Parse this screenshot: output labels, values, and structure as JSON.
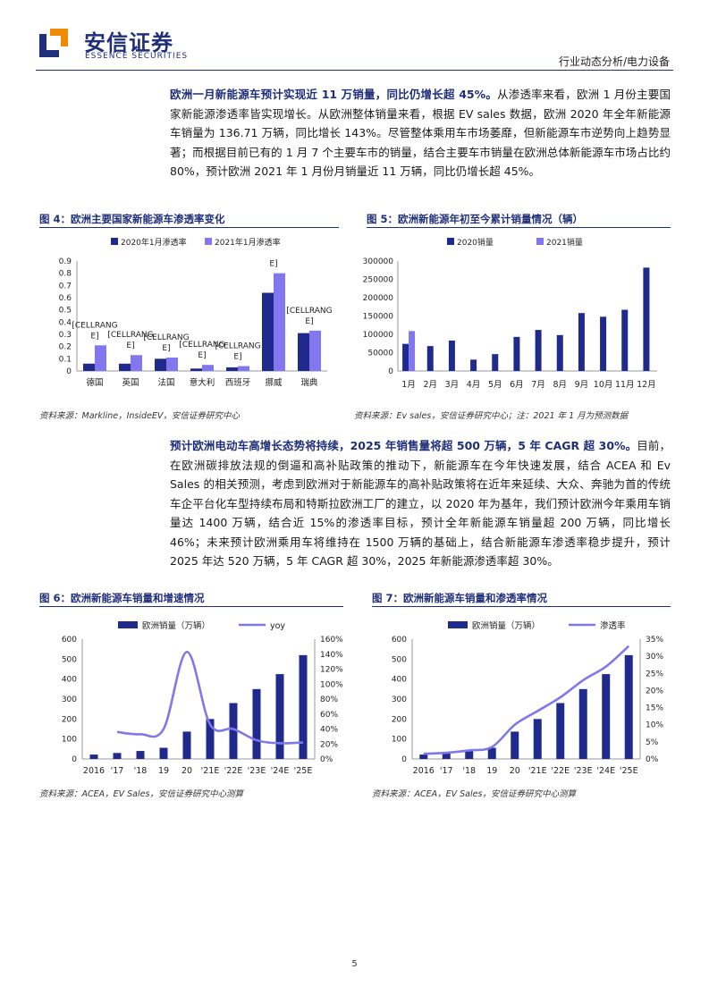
{
  "header": {
    "logo_cn": "安信证券",
    "logo_en": "ESSENCE SECURITIES",
    "category": "行业动态分析/电力设备"
  },
  "paragraph1": {
    "lead": "欧洲一月新能源车预计实现近 11 万销量，同比仍增长超 45%。",
    "body": "从渗透率来看，欧洲 1 月份主要国家新能源渗透率皆实现增长。从欧洲整体销量来看，根据 EV sales 数据，欧洲 2020 年全年新能源车销量为 136.71 万辆，同比增长 143%。尽管整体乘用车市场萎靡，但新能源车市逆势向上趋势显著；而根据目前已有的 1 月 7 个主要车市的销量，结合主要车市销量在欧洲总体新能源车市场占比约 80%，预计欧洲 2021 年 1 月份月销量近 11 万辆，同比仍增长超 45%。"
  },
  "paragraph2": {
    "lead": "预计欧洲电动车高增长态势将持续，2025 年销售量将超 500 万辆，5 年 CAGR 超 30%。",
    "body": "目前，在欧洲碳排放法规的倒逼和高补贴政策的推动下，新能源车在今年快速发展，结合 ACEA 和 Ev Sales 的相关预测，考虑到欧洲对于新能源车的高补贴政策将在近年来延续、大众、奔驰为首的传统车企平台化车型持续布局和特斯拉欧洲工厂的建立，以 2020 年为基年，我们预计欧洲今年乘用车销量达 1400 万辆，结合近 15%的渗透率目标，预计全年新能源车销量超 200 万辆，同比增长 46%；未来预计欧洲乘用车将维持在 1500 万辆的基础上，结合新能源车渗透率稳步提升，预计 2025 年达 520 万辆，5 年 CAGR 超 30%，2025 年新能源渗透率超 30%。"
  },
  "figures": {
    "fig4": {
      "title": "图 4：欧洲主要国家新能源车渗透率变化",
      "source": "资料来源：Markline，InsideEV，安信证券研究中心"
    },
    "fig5": {
      "title": "图 5：欧洲新能源年初至今累计销量情况（辆）",
      "source": "资料来源：Ev sales，安信证券研究中心；注：2021 年 1 月为预测数据"
    },
    "fig6": {
      "title": "图 6：欧洲新能源车销量和增速情况",
      "source": "资料来源：ACEA，EV Sales，安信证券研究中心测算"
    },
    "fig7": {
      "title": "图 7：欧洲新能源车销量和渗透率情况",
      "source": "资料来源：ACEA，EV Sales，安信证券研究中心测算"
    }
  },
  "colors": {
    "dark": "#1f2a8c",
    "light": "#8277ee",
    "line": "#7f78e8",
    "brand": "#1f2f7a"
  },
  "page_number": "5",
  "chart_data": [
    {
      "id": "fig4",
      "type": "bar",
      "categories": [
        "德国",
        "英国",
        "法国",
        "意大利",
        "西班牙",
        "挪威",
        "瑞典"
      ],
      "series": [
        {
          "name": "2020年1月渗透率",
          "values": [
            0.06,
            0.06,
            0.1,
            0.02,
            0.03,
            0.64,
            0.31
          ]
        },
        {
          "name": "2021年1月渗透率",
          "values": [
            0.21,
            0.13,
            0.11,
            0.05,
            0.04,
            0.8,
            0.33
          ]
        }
      ],
      "annotations": [
        {
          "category": "德国",
          "text": [
            "[CELLRANG",
            "E]"
          ]
        },
        {
          "category": "英国",
          "text": [
            "[CELLRANG",
            "E]"
          ]
        },
        {
          "category": "法国",
          "text": [
            "[CELLRANG",
            "E]"
          ]
        },
        {
          "category": "意大利",
          "text": [
            "[CELLRANG",
            "E]"
          ]
        },
        {
          "category": "西班牙",
          "text": [
            "[CELLRANG",
            "E]"
          ]
        },
        {
          "category": "挪威",
          "text": [
            "E]"
          ]
        },
        {
          "category": "瑞典",
          "text": [
            "[CELLRANG",
            "E]"
          ]
        }
      ],
      "yticks": [
        "0",
        "0.1",
        "0.2",
        "0.3",
        "0.4",
        "0.5",
        "0.6",
        "0.7",
        "0.8",
        "0.9"
      ],
      "ylim": [
        0,
        0.9
      ],
      "legend": "top"
    },
    {
      "id": "fig5",
      "type": "bar",
      "categories": [
        "1月",
        "2月",
        "3月",
        "4月",
        "5月",
        "6月",
        "7月",
        "8月",
        "9月",
        "10月",
        "11月",
        "12月"
      ],
      "series": [
        {
          "name": "2020销量",
          "values": [
            74000,
            68000,
            83000,
            31000,
            46000,
            93000,
            112000,
            98000,
            158000,
            148000,
            167000,
            282000
          ]
        },
        {
          "name": "2021销量",
          "values": [
            109000,
            null,
            null,
            null,
            null,
            null,
            null,
            null,
            null,
            null,
            null,
            null
          ]
        }
      ],
      "yticks": [
        "0",
        "50000",
        "100000",
        "150000",
        "200000",
        "250000",
        "300000"
      ],
      "ylim": [
        0,
        300000
      ],
      "legend": "top"
    },
    {
      "id": "fig6",
      "type": "bar",
      "categories": [
        "2016",
        "'17",
        "'18",
        "19",
        "20",
        "'21E",
        "'22E",
        "'23E",
        "'24E",
        "'25E"
      ],
      "series": [
        {
          "name": "欧洲销量（万辆）",
          "type": "bar",
          "axis": "left",
          "values": [
            22,
            30,
            40,
            56,
            137,
            200,
            280,
            350,
            425,
            520
          ]
        },
        {
          "name": "yoy",
          "type": "line",
          "axis": "right",
          "values": [
            null,
            0.36,
            0.33,
            0.4,
            1.43,
            0.46,
            0.4,
            0.25,
            0.21,
            0.22
          ]
        }
      ],
      "yticks_left": [
        "0",
        "100",
        "200",
        "300",
        "400",
        "500",
        "600"
      ],
      "yticks_right": [
        "0%",
        "20%",
        "40%",
        "60%",
        "80%",
        "100%",
        "120%",
        "140%",
        "160%"
      ],
      "ylim_left": [
        0,
        600
      ],
      "ylim_right": [
        0,
        1.6
      ],
      "legend": "top"
    },
    {
      "id": "fig7",
      "type": "bar",
      "categories": [
        "2016",
        "'17",
        "'18",
        "19",
        "20",
        "'21E",
        "'22E",
        "'23E",
        "'24E",
        "'25E"
      ],
      "series": [
        {
          "name": "欧洲销量（万辆）",
          "type": "bar",
          "axis": "left",
          "values": [
            22,
            30,
            40,
            56,
            137,
            200,
            280,
            350,
            425,
            520
          ]
        },
        {
          "name": "渗透率",
          "type": "line",
          "axis": "right",
          "values": [
            0.015,
            0.018,
            0.025,
            0.035,
            0.1,
            0.14,
            0.18,
            0.23,
            0.27,
            0.33
          ]
        }
      ],
      "yticks_left": [
        "0",
        "100",
        "200",
        "300",
        "400",
        "500",
        "600"
      ],
      "yticks_right": [
        "0%",
        "5%",
        "10%",
        "15%",
        "20%",
        "25%",
        "30%",
        "35%"
      ],
      "ylim_left": [
        0,
        600
      ],
      "ylim_right": [
        0,
        0.35
      ],
      "legend": "top"
    }
  ]
}
